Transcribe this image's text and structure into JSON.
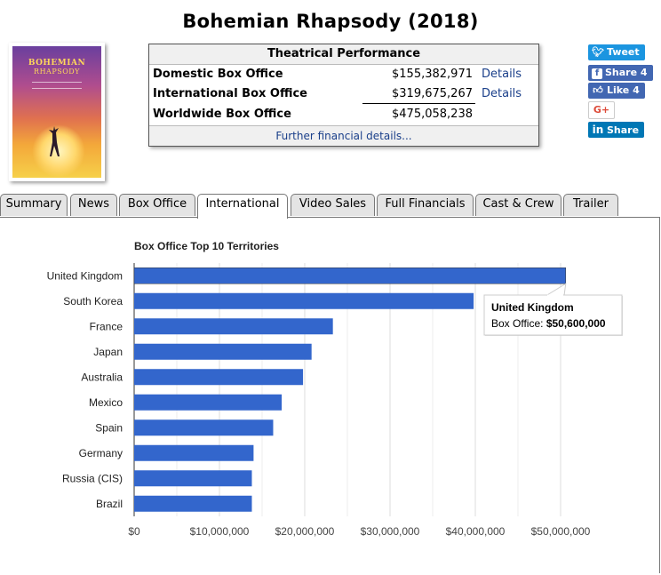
{
  "page": {
    "title": "Bohemian Rhapsody (2018)"
  },
  "poster": {
    "title_line1": "BOHEMIAN",
    "title_line2": "RHAPSODY"
  },
  "performance": {
    "heading": "Theatrical Performance",
    "rows": [
      {
        "label": "Domestic Box Office",
        "value": "$155,382,971",
        "details": "Details"
      },
      {
        "label": "International Box Office",
        "value": "$319,675,267",
        "details": "Details"
      },
      {
        "label": "Worldwide Box Office",
        "value": "$475,058,238",
        "details": ""
      }
    ],
    "further": "Further financial details..."
  },
  "social": {
    "tweet": {
      "label": "Tweet",
      "icon": "twitter-icon",
      "color": "#1b95e0"
    },
    "share": {
      "label": "Share 4",
      "icon": "facebook-icon",
      "color": "#4267b2"
    },
    "like": {
      "label": "Like 4",
      "icon": "thumbs-up-icon",
      "color": "#4267b2"
    },
    "gplus": {
      "label": "G+",
      "icon": "google-plus-icon",
      "color": "#dd4b39"
    },
    "linkedin": {
      "label": "Share",
      "icon": "linkedin-icon",
      "color": "#0077b5"
    }
  },
  "tabs": [
    "Summary",
    "News",
    "Box Office",
    "International",
    "Video Sales",
    "Full Financials",
    "Cast & Crew",
    "Trailer"
  ],
  "active_tab": "International",
  "chart_data": {
    "type": "bar",
    "orientation": "horizontal",
    "title": "Box Office Top 10 Territories",
    "categories": [
      "United Kingdom",
      "South Korea",
      "France",
      "Japan",
      "Australia",
      "Mexico",
      "Spain",
      "Germany",
      "Russia (CIS)",
      "Brazil"
    ],
    "values": [
      50600000,
      39800000,
      23300000,
      20800000,
      19800000,
      17300000,
      16300000,
      14000000,
      13800000,
      13800000
    ],
    "xlim": [
      0,
      55000000
    ],
    "x_ticks": [
      0,
      10000000,
      20000000,
      30000000,
      40000000,
      50000000
    ],
    "x_tick_labels": [
      "$0",
      "$10,000,000",
      "$20,000,000",
      "$30,000,000",
      "$40,000,000",
      "$50,000,000"
    ],
    "bar_color": "#3366cc",
    "grid": true,
    "tooltip": {
      "category": "United Kingdom",
      "label": "Box Office:",
      "value": "$50,600,000"
    }
  }
}
